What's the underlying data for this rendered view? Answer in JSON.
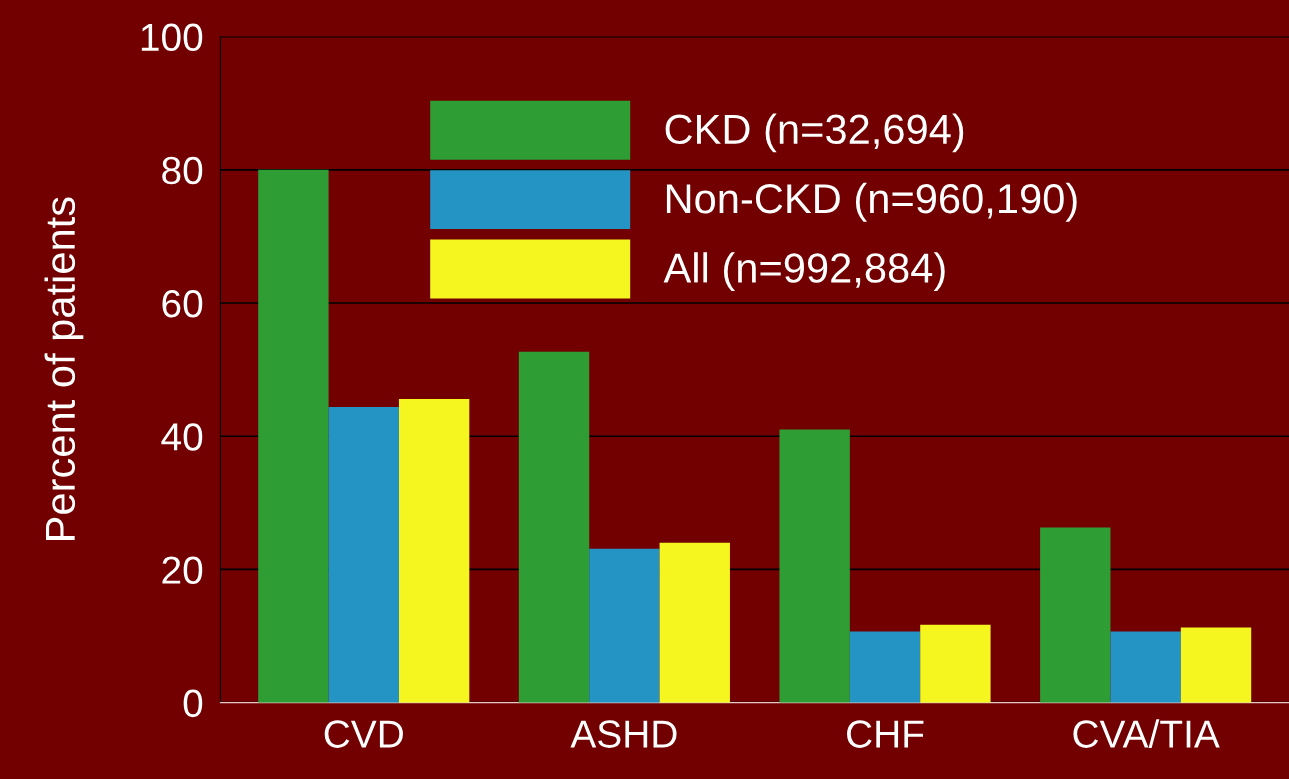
{
  "chart_data": {
    "type": "bar",
    "ylabel": "Percent of patients",
    "categories": [
      "CVD",
      "ASHD",
      "CHF",
      "CVA/TIA"
    ],
    "series": [
      {
        "name": "CKD (n=32,694)",
        "color": "#2e9e34",
        "values": [
          80,
          52.7,
          41,
          26.3
        ]
      },
      {
        "name": "Non-CKD (n=960,190)",
        "color": "#2494c4",
        "values": [
          44.4,
          23.1,
          10.7,
          10.7
        ]
      },
      {
        "name": "All (n=992,884)",
        "color": "#f5f520",
        "values": [
          45.6,
          24,
          11.7,
          11.3
        ]
      }
    ],
    "ylim": [
      0,
      100
    ],
    "yticks": [
      0,
      20,
      40,
      60,
      80,
      100
    ],
    "grid": "y",
    "legend": "top"
  }
}
